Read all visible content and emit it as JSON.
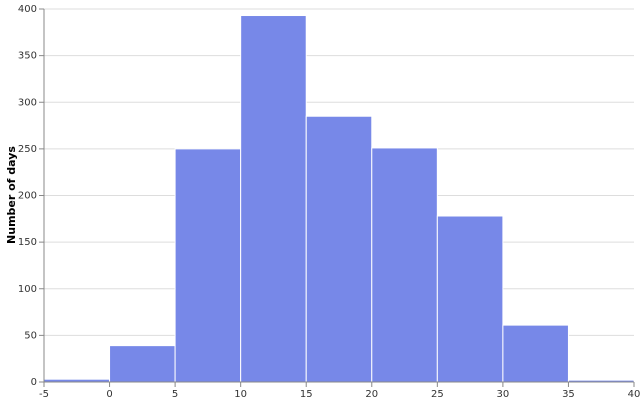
{
  "chart_data": {
    "type": "histogram",
    "y_label": "Number of days",
    "bins": [
      -5,
      0,
      5,
      10,
      15,
      20,
      25,
      30,
      35,
      40
    ],
    "values": [
      3,
      39,
      250,
      393,
      285,
      251,
      178,
      61,
      2
    ],
    "color": "#7788e8",
    "xlim": [
      -5,
      40
    ],
    "xticks": [
      -5,
      0,
      5,
      10,
      15,
      20,
      25,
      30,
      35,
      40
    ],
    "ylim": [
      0,
      400
    ],
    "yticks": [
      0,
      50,
      100,
      150,
      200,
      250,
      300,
      350,
      400
    ],
    "grid": true
  }
}
